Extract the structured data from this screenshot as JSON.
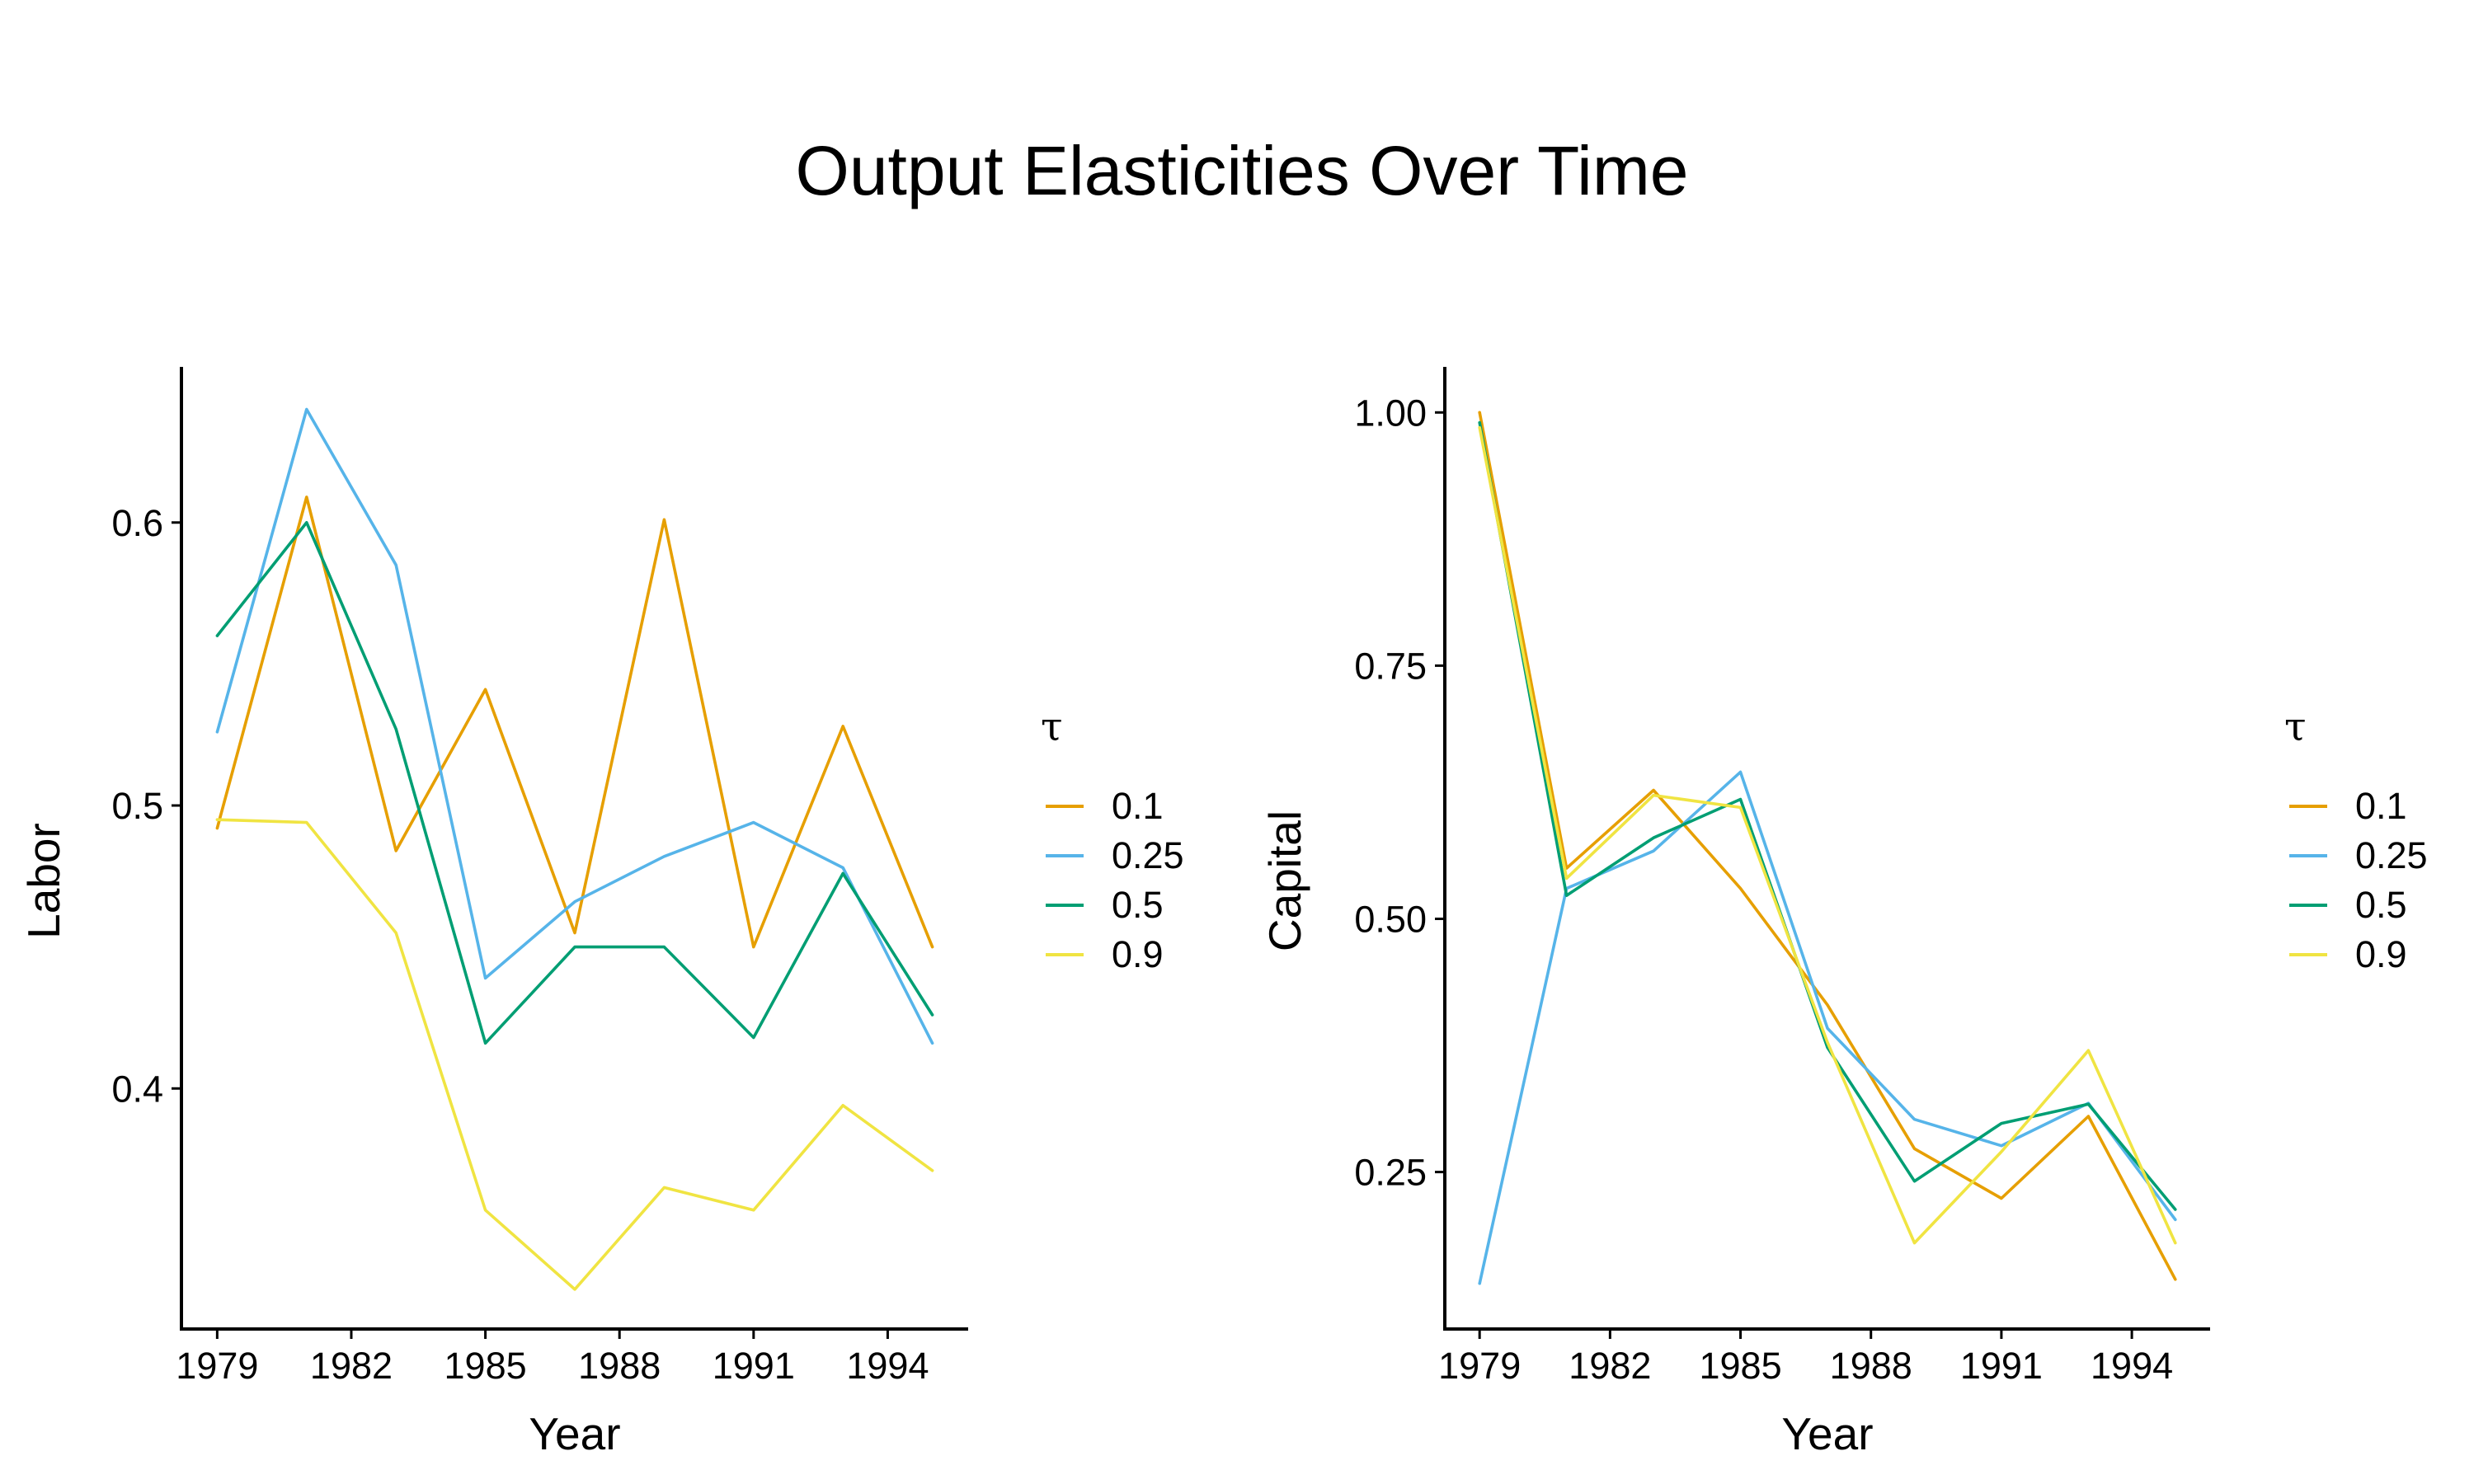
{
  "figure": {
    "title": "Output Elasticities Over Time"
  },
  "chart_data": [
    {
      "type": "line",
      "title": "",
      "xlabel": "Year",
      "ylabel": "Labor",
      "x": [
        1979,
        1981,
        1983,
        1985,
        1987,
        1989,
        1991,
        1993,
        1995
      ],
      "xticks": [
        1979,
        1982,
        1985,
        1988,
        1991,
        1994
      ],
      "xtick_labels": [
        "1979",
        "1982",
        "1985",
        "1988",
        "1991",
        "1994"
      ],
      "xlim": [
        1978.2,
        1995.8
      ],
      "yticks": [
        0.4,
        0.5,
        0.6
      ],
      "ytick_labels": [
        "0.4",
        "0.5",
        "0.6"
      ],
      "ylim": [
        0.315,
        0.655
      ],
      "legend": {
        "title": "τ",
        "position": "right"
      },
      "series": [
        {
          "name": "0.1",
          "color": "#E69F00",
          "values": [
            0.492,
            0.609,
            0.484,
            0.541,
            0.455,
            0.601,
            0.45,
            0.528,
            0.45
          ]
        },
        {
          "name": "0.25",
          "color": "#56B4E9",
          "values": [
            0.526,
            0.64,
            0.585,
            0.439,
            0.466,
            0.482,
            0.494,
            0.478,
            0.416
          ]
        },
        {
          "name": "0.5",
          "color": "#009E73",
          "values": [
            0.56,
            0.6,
            0.527,
            0.416,
            0.45,
            0.45,
            0.418,
            0.476,
            0.426
          ]
        },
        {
          "name": "0.9",
          "color": "#F0E442",
          "values": [
            0.495,
            0.494,
            0.455,
            0.357,
            0.329,
            0.365,
            0.357,
            0.394,
            0.371
          ]
        }
      ]
    },
    {
      "type": "line",
      "title": "",
      "xlabel": "Year",
      "ylabel": "Capital",
      "x": [
        1979,
        1981,
        1983,
        1985,
        1987,
        1989,
        1991,
        1993,
        1995
      ],
      "xticks": [
        1979,
        1982,
        1985,
        1988,
        1991,
        1994
      ],
      "xtick_labels": [
        "1979",
        "1982",
        "1985",
        "1988",
        "1991",
        "1994"
      ],
      "xlim": [
        1978.2,
        1995.8
      ],
      "yticks": [
        0.25,
        0.5,
        0.75,
        1.0
      ],
      "ytick_labels": [
        "0.25",
        "0.50",
        "0.75",
        "1.00"
      ],
      "ylim": [
        0.095,
        1.045
      ],
      "legend": {
        "title": "τ",
        "position": "right"
      },
      "series": [
        {
          "name": "0.1",
          "color": "#E69F00",
          "values": [
            1.0,
            0.55,
            0.627,
            0.53,
            0.415,
            0.273,
            0.224,
            0.305,
            0.144
          ]
        },
        {
          "name": "0.25",
          "color": "#56B4E9",
          "values": [
            0.14,
            0.53,
            0.567,
            0.645,
            0.392,
            0.302,
            0.276,
            0.318,
            0.203
          ]
        },
        {
          "name": "0.5",
          "color": "#009E73",
          "values": [
            0.99,
            0.523,
            0.58,
            0.618,
            0.373,
            0.241,
            0.298,
            0.317,
            0.213
          ]
        },
        {
          "name": "0.9",
          "color": "#F0E442",
          "values": [
            0.985,
            0.54,
            0.622,
            0.61,
            0.378,
            0.18,
            0.27,
            0.37,
            0.18
          ]
        }
      ]
    }
  ]
}
